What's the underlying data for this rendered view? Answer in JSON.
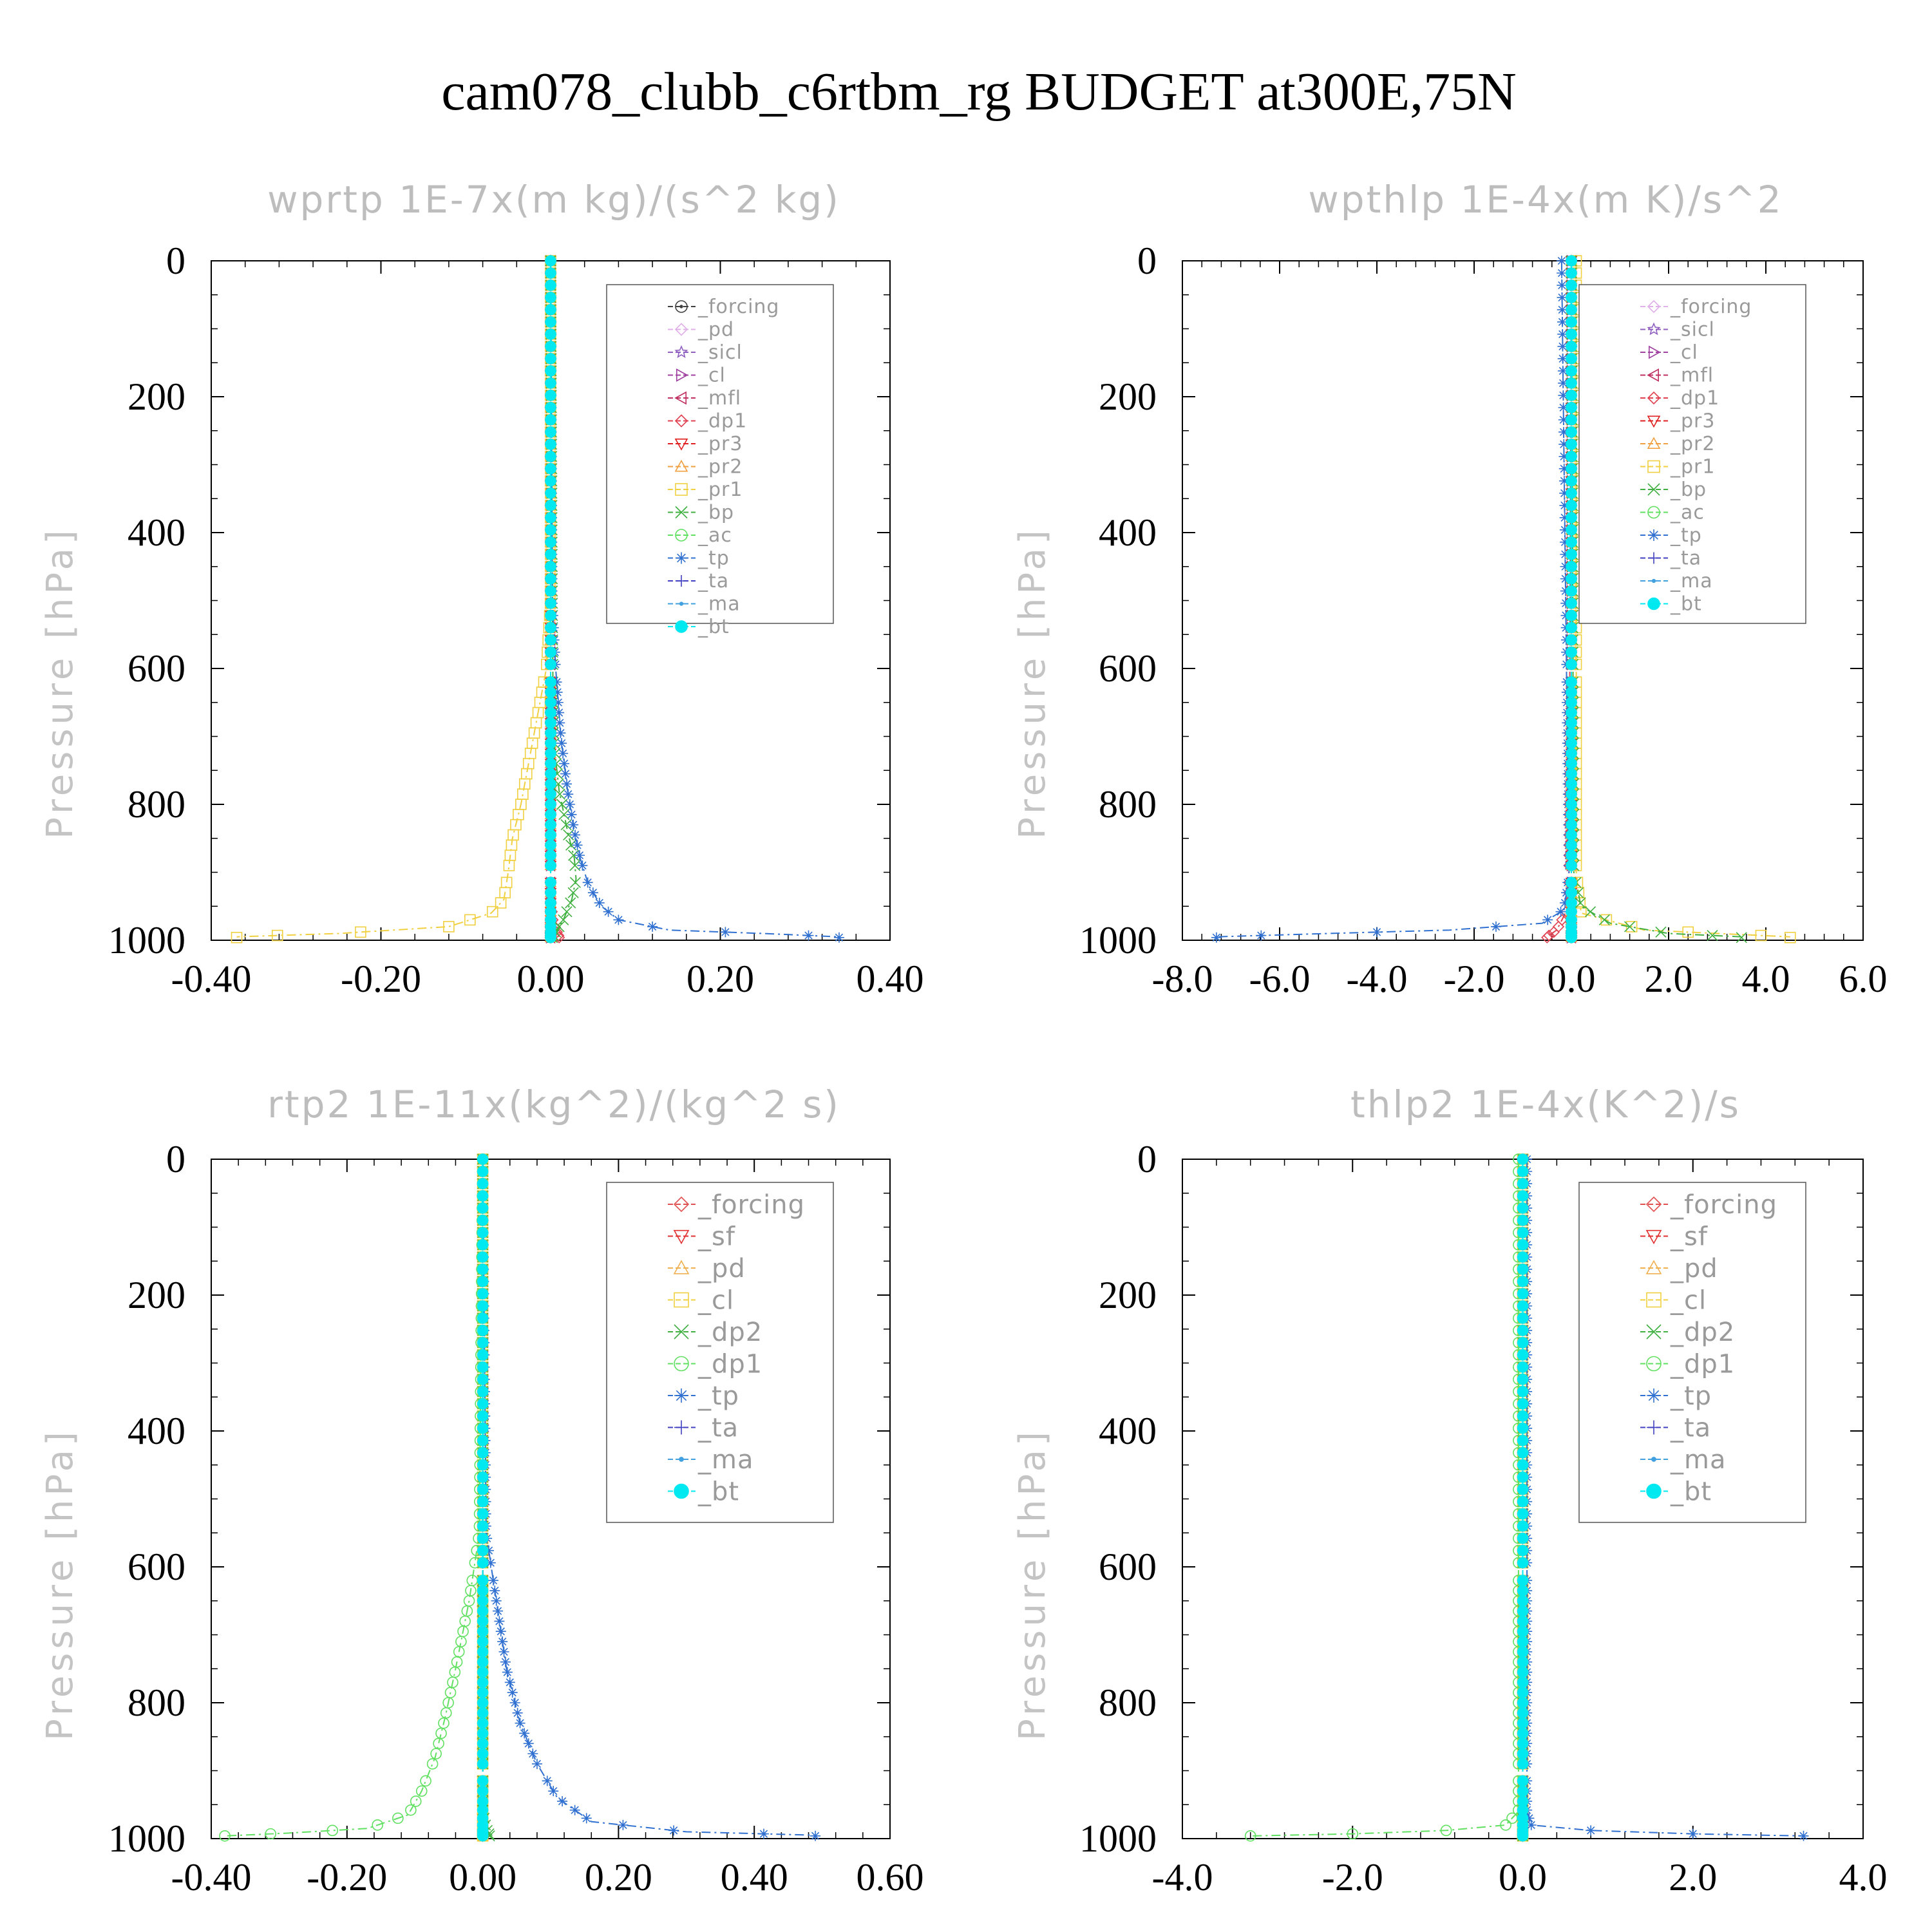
{
  "figure": {
    "title": "cam078_clubb_c6rtbm_rg  BUDGET at300E,75N"
  },
  "chart_data": [
    {
      "type": "line",
      "title": "wprtp  1E-7x(m kg)/(s^2 kg)",
      "ylabel": "Pressure [hPa]",
      "xlabel": "",
      "xlim": [
        -0.4,
        0.4
      ],
      "ylim": [
        1000,
        0
      ],
      "xticks": [
        -0.4,
        -0.2,
        0.0,
        0.2,
        0.4
      ],
      "xtick_labels": [
        "-0.40",
        "-0.20",
        "0.00",
        "0.20",
        "0.40"
      ],
      "yticks": [
        0,
        200,
        400,
        600,
        800,
        1000
      ],
      "ytick_labels": [
        "0",
        "200",
        "400",
        "600",
        "800",
        "1000"
      ],
      "legend_position": "top-right",
      "series": [
        {
          "name": "_forcing",
          "color": "#404040",
          "marker": "circle-dot",
          "x": [
            0,
            0
          ],
          "y": [
            0,
            1000
          ]
        },
        {
          "name": "_pd",
          "color": "#e0b0e8",
          "marker": "diamond",
          "x": [
            0,
            0
          ],
          "y": [
            0,
            1000
          ]
        },
        {
          "name": "_sicl",
          "color": "#9060c0",
          "marker": "star",
          "x": [
            0,
            0
          ],
          "y": [
            0,
            1000
          ]
        },
        {
          "name": "_cl",
          "color": "#a040a0",
          "marker": "triangle-right",
          "x": [
            0,
            0
          ],
          "y": [
            0,
            1000
          ]
        },
        {
          "name": "_mfl",
          "color": "#c03060",
          "marker": "triangle-left",
          "x": [
            0,
            0
          ],
          "y": [
            0,
            1000
          ]
        },
        {
          "name": "_dp1",
          "color": "#e04050",
          "marker": "diamond",
          "x": [
            0,
            0,
            0.003,
            0.01
          ],
          "y": [
            0,
            940,
            975,
            995
          ]
        },
        {
          "name": "_pr3",
          "color": "#e02020",
          "marker": "triangle-down",
          "x": [
            0,
            0
          ],
          "y": [
            0,
            1000
          ]
        },
        {
          "name": "_pr2",
          "color": "#f0a040",
          "marker": "triangle-up",
          "x": [
            0,
            0
          ],
          "y": [
            0,
            1000
          ]
        },
        {
          "name": "_pr1",
          "color": "#f0d040",
          "marker": "square",
          "x": [
            0,
            0,
            -0.005,
            -0.02,
            -0.035,
            -0.045,
            -0.05,
            -0.055,
            -0.07,
            -0.12,
            -0.25,
            -0.37
          ],
          "y": [
            0,
            500,
            600,
            700,
            800,
            850,
            900,
            940,
            960,
            980,
            990,
            995
          ]
        },
        {
          "name": "_bp",
          "color": "#40b040",
          "marker": "x",
          "x": [
            0,
            0.003,
            0.01,
            0.02,
            0.028,
            0.03,
            0.025,
            0.015,
            0.005,
            0
          ],
          "y": [
            0,
            700,
            780,
            840,
            880,
            910,
            940,
            970,
            990,
            1000
          ]
        },
        {
          "name": "_ac",
          "color": "#60e060",
          "marker": "circle",
          "x": [
            0,
            0
          ],
          "y": [
            0,
            1000
          ]
        },
        {
          "name": "_tp",
          "color": "#3070d0",
          "marker": "asterisk",
          "x": [
            0,
            0.002,
            0.006,
            0.012,
            0.02,
            0.028,
            0.035,
            0.045,
            0.06,
            0.08,
            0.14,
            0.25,
            0.34
          ],
          "y": [
            0,
            500,
            600,
            700,
            780,
            840,
            880,
            920,
            950,
            970,
            985,
            990,
            995
          ]
        },
        {
          "name": "_ta",
          "color": "#4040c0",
          "marker": "plus",
          "x": [
            0,
            0
          ],
          "y": [
            0,
            1000
          ]
        },
        {
          "name": "_ma",
          "color": "#40a0e0",
          "marker": "dot",
          "x": [
            0,
            0
          ],
          "y": [
            0,
            1000
          ]
        },
        {
          "name": "_bt",
          "color": "#00e8f0",
          "marker": "filled-circle",
          "x": [
            0,
            0
          ],
          "y": [
            0,
            1000
          ]
        }
      ]
    },
    {
      "type": "line",
      "title": "wpthlp  1E-4x(m K)/s^2",
      "ylabel": "Pressure [hPa]",
      "xlabel": "",
      "xlim": [
        -8.0,
        6.0
      ],
      "ylim": [
        1000,
        0
      ],
      "xticks": [
        -8,
        -6,
        -4,
        -2,
        0,
        2,
        4,
        6
      ],
      "xtick_labels": [
        "-8.0",
        "-6.0",
        "-4.0",
        "-2.0",
        "0.0",
        "2.0",
        "4.0",
        "6.0"
      ],
      "yticks": [
        0,
        200,
        400,
        600,
        800,
        1000
      ],
      "ytick_labels": [
        "0",
        "200",
        "400",
        "600",
        "800",
        "1000"
      ],
      "legend_position": "top-right",
      "series": [
        {
          "name": "_forcing",
          "color": "#e0b0e8",
          "marker": "diamond",
          "x": [
            0,
            0
          ],
          "y": [
            0,
            1000
          ]
        },
        {
          "name": "_sicl",
          "color": "#9060c0",
          "marker": "star",
          "x": [
            0,
            0
          ],
          "y": [
            0,
            1000
          ]
        },
        {
          "name": "_cl",
          "color": "#a040a0",
          "marker": "triangle-right",
          "x": [
            0,
            0
          ],
          "y": [
            0,
            1000
          ]
        },
        {
          "name": "_mfl",
          "color": "#c03060",
          "marker": "triangle-left",
          "x": [
            0,
            0
          ],
          "y": [
            0,
            1000
          ]
        },
        {
          "name": "_dp1",
          "color": "#e04050",
          "marker": "diamond",
          "x": [
            0,
            -0.05,
            -0.3,
            -0.5
          ],
          "y": [
            0,
            950,
            985,
            995
          ]
        },
        {
          "name": "_pr3",
          "color": "#e02020",
          "marker": "triangle-down",
          "x": [
            0,
            0
          ],
          "y": [
            0,
            1000
          ]
        },
        {
          "name": "_pr2",
          "color": "#f0a040",
          "marker": "triangle-up",
          "x": [
            0,
            0
          ],
          "y": [
            0,
            1000
          ]
        },
        {
          "name": "_pr1",
          "color": "#f0d040",
          "marker": "square",
          "x": [
            0.1,
            0.1,
            0.2,
            1.5,
            4.5
          ],
          "y": [
            0,
            900,
            960,
            985,
            995
          ]
        },
        {
          "name": "_bp",
          "color": "#40b040",
          "marker": "x",
          "x": [
            0,
            0.05,
            0.2,
            0.8,
            2.0,
            3.5
          ],
          "y": [
            0,
            900,
            950,
            975,
            990,
            995
          ]
        },
        {
          "name": "_ac",
          "color": "#60e060",
          "marker": "circle",
          "x": [
            0,
            0
          ],
          "y": [
            0,
            1000
          ]
        },
        {
          "name": "_tp",
          "color": "#3070d0",
          "marker": "asterisk",
          "x": [
            -0.2,
            -0.05,
            -0.15,
            -0.6,
            -2.5,
            -5.0,
            -7.3
          ],
          "y": [
            0,
            900,
            955,
            975,
            985,
            990,
            995
          ]
        },
        {
          "name": "_ta",
          "color": "#4040c0",
          "marker": "plus",
          "x": [
            0,
            0
          ],
          "y": [
            0,
            1000
          ]
        },
        {
          "name": "_ma",
          "color": "#40a0e0",
          "marker": "dot",
          "x": [
            0,
            0
          ],
          "y": [
            0,
            1000
          ]
        },
        {
          "name": "_bt",
          "color": "#00e8f0",
          "marker": "filled-circle",
          "x": [
            0,
            0
          ],
          "y": [
            0,
            1000
          ]
        }
      ]
    },
    {
      "type": "line",
      "title": "rtp2  1E-11x(kg^2)/(kg^2 s)",
      "ylabel": "Pressure [hPa]",
      "xlabel": "",
      "xlim": [
        -0.4,
        0.6
      ],
      "ylim": [
        1000,
        0
      ],
      "xticks": [
        -0.4,
        -0.2,
        0.0,
        0.2,
        0.4,
        0.6
      ],
      "xtick_labels": [
        "-0.40",
        "-0.20",
        "0.00",
        "0.20",
        "0.40",
        "0.60"
      ],
      "yticks": [
        0,
        200,
        400,
        600,
        800,
        1000
      ],
      "ytick_labels": [
        "0",
        "200",
        "400",
        "600",
        "800",
        "1000"
      ],
      "legend_position": "top-right",
      "series": [
        {
          "name": "_forcing",
          "color": "#e05050",
          "marker": "diamond",
          "x": [
            0,
            0
          ],
          "y": [
            0,
            1000
          ]
        },
        {
          "name": "_sf",
          "color": "#e03030",
          "marker": "triangle-down",
          "x": [
            0,
            0
          ],
          "y": [
            0,
            1000
          ]
        },
        {
          "name": "_pd",
          "color": "#f0b050",
          "marker": "triangle-up",
          "x": [
            0,
            0
          ],
          "y": [
            0,
            1000
          ]
        },
        {
          "name": "_cl",
          "color": "#f0d040",
          "marker": "square",
          "x": [
            0,
            0
          ],
          "y": [
            0,
            1000
          ]
        },
        {
          "name": "_dp2",
          "color": "#40b040",
          "marker": "x",
          "x": [
            0,
            0,
            0.005,
            0.01
          ],
          "y": [
            0,
            960,
            985,
            995
          ]
        },
        {
          "name": "_dp1",
          "color": "#60e060",
          "marker": "circle",
          "x": [
            0,
            -0.005,
            -0.02,
            -0.04,
            -0.055,
            -0.07,
            -0.09,
            -0.11,
            -0.17,
            -0.29,
            -0.38
          ],
          "y": [
            0,
            550,
            650,
            750,
            820,
            880,
            930,
            965,
            985,
            992,
            996
          ]
        },
        {
          "name": "_tp",
          "color": "#3070d0",
          "marker": "asterisk",
          "x": [
            0,
            0.005,
            0.02,
            0.035,
            0.055,
            0.08,
            0.11,
            0.16,
            0.3,
            0.49
          ],
          "y": [
            0,
            550,
            650,
            750,
            830,
            890,
            940,
            975,
            990,
            995
          ]
        },
        {
          "name": "_ta",
          "color": "#4040c0",
          "marker": "plus",
          "x": [
            0,
            0
          ],
          "y": [
            0,
            1000
          ]
        },
        {
          "name": "_ma",
          "color": "#40a0e0",
          "marker": "dot",
          "x": [
            0,
            0
          ],
          "y": [
            0,
            1000
          ]
        },
        {
          "name": "_bt",
          "color": "#00e8f0",
          "marker": "filled-circle",
          "x": [
            0,
            0
          ],
          "y": [
            0,
            1000
          ]
        }
      ]
    },
    {
      "type": "line",
      "title": "thlp2  1E-4x(K^2)/s",
      "ylabel": "Pressure [hPa]",
      "xlabel": "",
      "xlim": [
        -4.0,
        4.0
      ],
      "ylim": [
        1000,
        0
      ],
      "xticks": [
        -4,
        -2,
        0,
        2,
        4
      ],
      "xtick_labels": [
        "-4.0",
        "-2.0",
        "0.0",
        "2.0",
        "4.0"
      ],
      "yticks": [
        0,
        200,
        400,
        600,
        800,
        1000
      ],
      "ytick_labels": [
        "0",
        "200",
        "400",
        "600",
        "800",
        "1000"
      ],
      "legend_position": "top-right",
      "series": [
        {
          "name": "_forcing",
          "color": "#e05050",
          "marker": "diamond",
          "x": [
            0,
            0
          ],
          "y": [
            0,
            1000
          ]
        },
        {
          "name": "_sf",
          "color": "#e03030",
          "marker": "triangle-down",
          "x": [
            0,
            0
          ],
          "y": [
            0,
            1000
          ]
        },
        {
          "name": "_pd",
          "color": "#f0b050",
          "marker": "triangle-up",
          "x": [
            0,
            0
          ],
          "y": [
            0,
            1000
          ]
        },
        {
          "name": "_cl",
          "color": "#f0d040",
          "marker": "square",
          "x": [
            0,
            0
          ],
          "y": [
            0,
            1000
          ]
        },
        {
          "name": "_dp2",
          "color": "#40b040",
          "marker": "x",
          "x": [
            0,
            0
          ],
          "y": [
            0,
            1000
          ]
        },
        {
          "name": "_dp1",
          "color": "#60e060",
          "marker": "circle",
          "x": [
            -0.05,
            -0.05,
            -0.2,
            -0.9,
            -2.0,
            -3.2
          ],
          "y": [
            0,
            960,
            980,
            988,
            993,
            996
          ]
        },
        {
          "name": "_tp",
          "color": "#3070d0",
          "marker": "asterisk",
          "x": [
            0.05,
            0.05,
            0.1,
            0.8,
            2.0,
            3.3
          ],
          "y": [
            0,
            960,
            980,
            988,
            993,
            996
          ]
        },
        {
          "name": "_ta",
          "color": "#4040c0",
          "marker": "plus",
          "x": [
            0,
            0
          ],
          "y": [
            0,
            1000
          ]
        },
        {
          "name": "_ma",
          "color": "#40a0e0",
          "marker": "dot",
          "x": [
            0,
            0
          ],
          "y": [
            0,
            1000
          ]
        },
        {
          "name": "_bt",
          "color": "#00e8f0",
          "marker": "filled-circle",
          "x": [
            0,
            0
          ],
          "y": [
            0,
            1000
          ]
        }
      ]
    }
  ]
}
